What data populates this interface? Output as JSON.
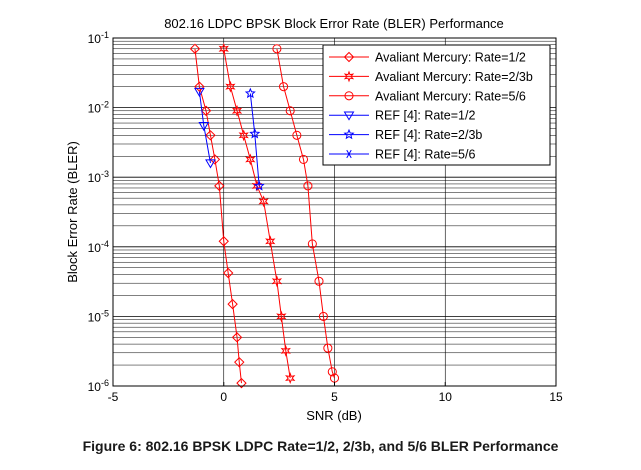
{
  "chart_data": {
    "type": "line",
    "title": "802.16 LDPC BPSK Block Error Rate (BLER) Performance",
    "xlabel": "SNR (dB)",
    "ylabel": "Block Error Rate (BLER)",
    "xlim": [
      -5,
      15
    ],
    "ylim": [
      1e-06,
      0.1
    ],
    "yscale": "log",
    "x_ticks": [
      "-5",
      "0",
      "5",
      "10",
      "15"
    ],
    "x_tick_values": [
      -5,
      0,
      5,
      10,
      15
    ],
    "y_ticks": [
      {
        "base": "10",
        "exp": "-1",
        "value": 0.1
      },
      {
        "base": "10",
        "exp": "-2",
        "value": 0.01
      },
      {
        "base": "10",
        "exp": "-3",
        "value": 0.001
      },
      {
        "base": "10",
        "exp": "-4",
        "value": 0.0001
      },
      {
        "base": "10",
        "exp": "-5",
        "value": 1e-05
      },
      {
        "base": "10",
        "exp": "-6",
        "value": 1e-06
      }
    ],
    "grid": true,
    "legend_position": "top-right",
    "series": [
      {
        "name": "Avaliant Mercury: Rate=1/2",
        "color": "#ff0000",
        "marker": "diamond",
        "x": [
          -1.3,
          -1.1,
          -0.8,
          -0.6,
          -0.4,
          -0.2,
          0.0,
          0.2,
          0.4,
          0.6,
          0.7,
          0.8
        ],
        "y": [
          0.07,
          0.02,
          0.009,
          0.004,
          0.0018,
          0.00075,
          0.00012,
          4.2e-05,
          1.5e-05,
          5e-06,
          2.2e-06,
          1.1e-06
        ]
      },
      {
        "name": "Avaliant Mercury: Rate=2/3b",
        "color": "#ff0000",
        "marker": "hexagram",
        "x": [
          0.0,
          0.3,
          0.6,
          0.9,
          1.2,
          1.5,
          1.8,
          2.1,
          2.4,
          2.6,
          2.8,
          3.0
        ],
        "y": [
          0.07,
          0.02,
          0.009,
          0.004,
          0.0018,
          0.00075,
          0.00045,
          0.00012,
          3.2e-05,
          1e-05,
          3.2e-06,
          1.3e-06
        ]
      },
      {
        "name": "Avaliant Mercury: Rate=5/6",
        "color": "#ff0000",
        "marker": "circle",
        "x": [
          2.4,
          2.7,
          3.0,
          3.3,
          3.6,
          3.8,
          4.0,
          4.3,
          4.5,
          4.7,
          4.9,
          5.0
        ],
        "y": [
          0.07,
          0.02,
          0.009,
          0.004,
          0.0018,
          0.00075,
          0.00011,
          3.2e-05,
          1e-05,
          3.5e-06,
          1.6e-06,
          1.3e-06
        ]
      },
      {
        "name": "REF [4]: Rate=1/2",
        "color": "#0000ff",
        "marker": "triangle-down",
        "x": [
          -1.1,
          -0.9,
          -0.6
        ],
        "y": [
          0.017,
          0.0055,
          0.0016
        ]
      },
      {
        "name": "REF [4]: Rate=2/3b",
        "color": "#0000ff",
        "marker": "pentagram",
        "x": [
          1.2,
          1.4,
          1.6
        ],
        "y": [
          0.016,
          0.0042,
          0.00075
        ]
      },
      {
        "name": "REF [4]: Rate=5/6",
        "color": "#0000ff",
        "marker": "asterisk",
        "x": [],
        "y": []
      }
    ]
  },
  "caption": "Figure 6: 802.16 BPSK LDPC Rate=1/2, 2/3b, and 5/6 BLER Performance"
}
